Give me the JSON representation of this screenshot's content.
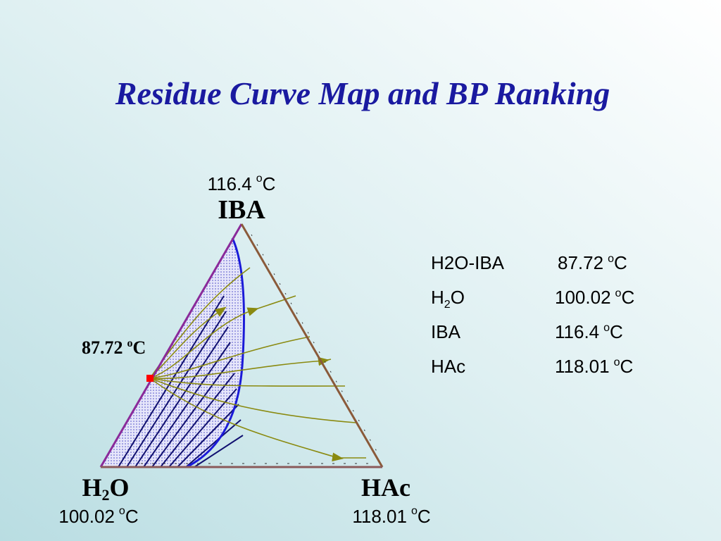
{
  "title": "Residue Curve Map and BP Ranking",
  "vertices": [
    {
      "label": {
        "main": "IBA"
      },
      "temperature": {
        "value": "116.4",
        "degree": "o",
        "unit": "C"
      }
    },
    {
      "label": {
        "main": "H",
        "sub": "2",
        "rest": "O"
      },
      "temperature": {
        "value": "100.02",
        "degree": "o",
        "unit": "C"
      }
    },
    {
      "label": {
        "main": "HAc"
      },
      "temperature": {
        "value": "118.01",
        "degree": "o",
        "unit": "C"
      }
    }
  ],
  "azeotrope_label": {
    "value": "87.72",
    "degree": "o",
    "unit": "C"
  },
  "table": {
    "rows": [
      {
        "component": {
          "main": "H2O-IBA"
        },
        "temperature": {
          "value": "87.72",
          "degree": "o",
          "unit": "C"
        }
      },
      {
        "component": {
          "main": "H",
          "sub": "2",
          "rest": "O"
        },
        "temperature": {
          "value": "100.02",
          "degree": "o",
          "unit": "C"
        }
      },
      {
        "component": {
          "main": "IBA"
        },
        "temperature": {
          "value": "116.4",
          "degree": "o",
          "unit": "C"
        }
      },
      {
        "component": {
          "main": "HAc"
        },
        "temperature": {
          "value": "118.01",
          "degree": "o",
          "unit": "C"
        }
      }
    ]
  }
}
